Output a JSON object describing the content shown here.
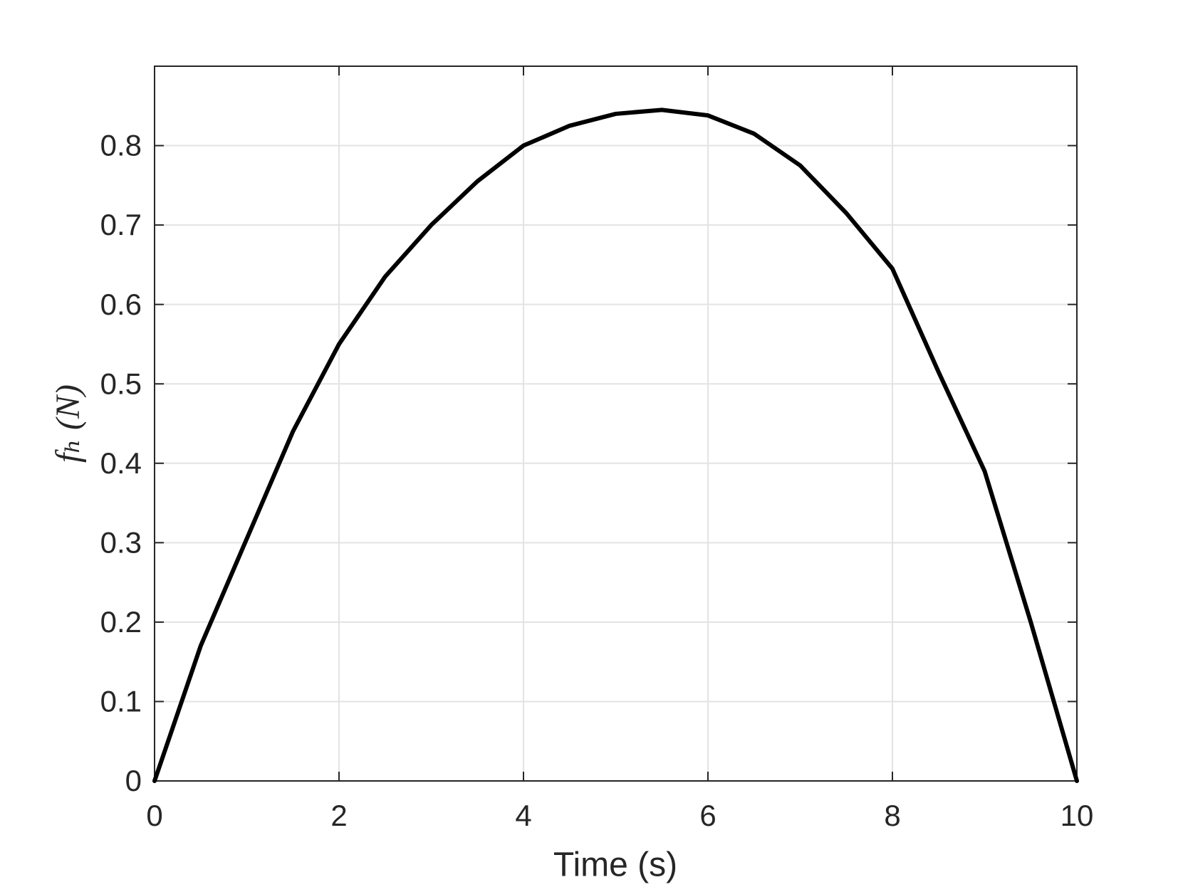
{
  "chart_data": {
    "type": "line",
    "xlabel": "Time (s)",
    "ylabel": "fₕ (N)",
    "x": [
      0,
      0.5,
      1,
      1.5,
      2,
      2.5,
      3,
      3.5,
      4,
      4.5,
      5,
      5.5,
      6,
      6.5,
      7,
      7.5,
      8,
      8.5,
      9,
      9.5,
      10
    ],
    "series": [
      {
        "color": "#000000",
        "values": [
          0,
          0.17,
          0.305,
          0.44,
          0.55,
          0.635,
          0.7,
          0.755,
          0.8,
          0.825,
          0.84,
          0.845,
          0.838,
          0.815,
          0.775,
          0.715,
          0.645,
          0.515,
          0.39,
          0.2,
          0
        ]
      }
    ],
    "xlim": [
      0,
      10
    ],
    "xticks": [
      0,
      2,
      4,
      6,
      8,
      10
    ],
    "ylim": [
      0,
      0.9
    ],
    "yticks": [
      0,
      0.1,
      0.2,
      0.3,
      0.4,
      0.5,
      0.6,
      0.7,
      0.8
    ],
    "grid": true
  }
}
